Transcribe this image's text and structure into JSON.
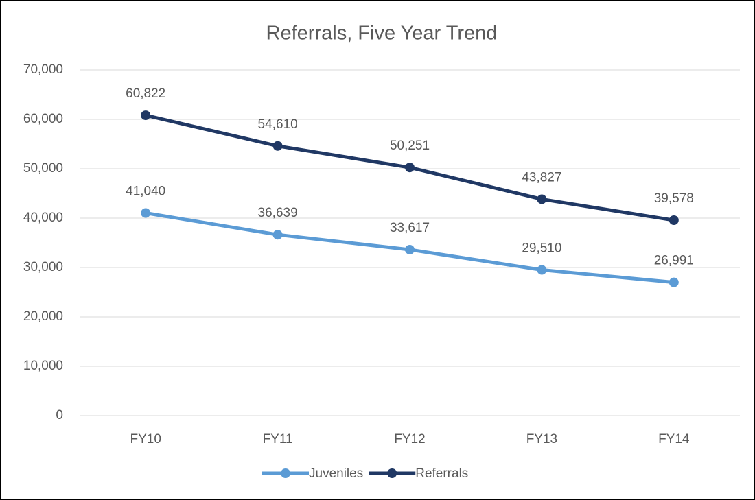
{
  "chart_data": {
    "type": "line",
    "title": "Referrals, Five Year Trend",
    "categories": [
      "FY10",
      "FY11",
      "FY12",
      "FY13",
      "FY14"
    ],
    "series": [
      {
        "name": "Juveniles",
        "color": "#5b9bd5",
        "values": [
          41040,
          36639,
          33617,
          29510,
          26991
        ],
        "value_labels": [
          "41,040",
          "36,639",
          "33,617",
          "29,510",
          "26,991"
        ]
      },
      {
        "name": "Referrals",
        "color": "#203864",
        "values": [
          60822,
          54610,
          50251,
          43827,
          39578
        ],
        "value_labels": [
          "60,822",
          "54,610",
          "50,251",
          "43,827",
          "39,578"
        ]
      }
    ],
    "ylim": [
      0,
      70000
    ],
    "yticks": [
      0,
      {
        "value": 10000,
        "label": "10,000"
      },
      {
        "value": 20000,
        "label": "20,000"
      },
      {
        "value": 30000,
        "label": "30,000"
      },
      {
        "value": 40000,
        "label": "40,000"
      },
      {
        "value": 50000,
        "label": "50,000"
      },
      {
        "value": 60000,
        "label": "60,000"
      },
      {
        "value": 70000,
        "label": "70,000"
      }
    ],
    "grid": true,
    "legend": "bottom"
  }
}
